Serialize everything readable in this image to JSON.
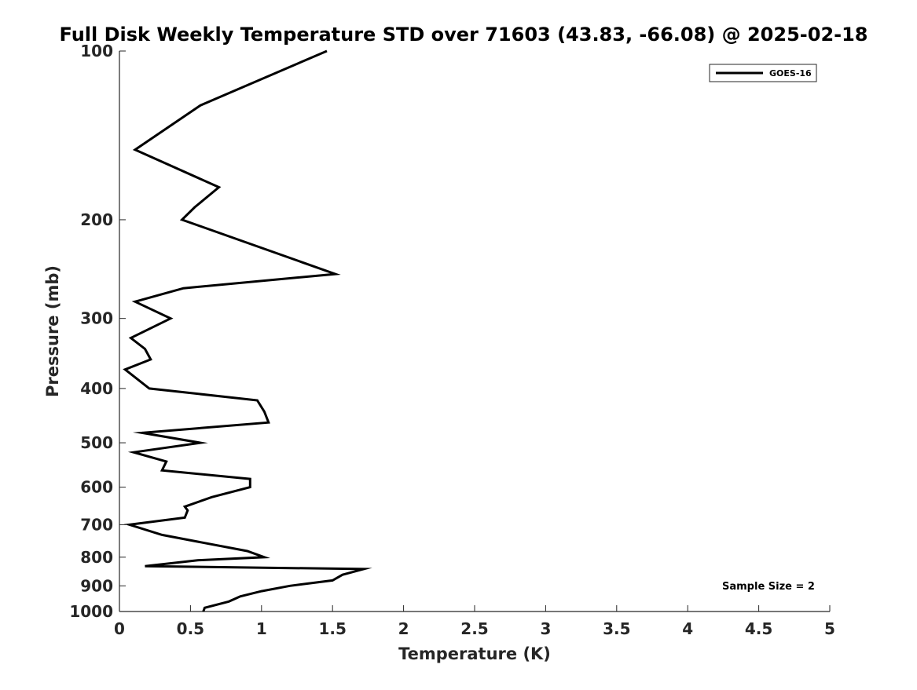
{
  "chart_data": {
    "type": "line",
    "title": "Full Disk Weekly Temperature STD over 71603 (43.83, -66.08) @ 2025-02-18",
    "xlabel": "Temperature (K)",
    "ylabel": "Pressure (mb)",
    "xlim": [
      0,
      5
    ],
    "ylim": [
      100,
      1000
    ],
    "y_scale": "log",
    "y_reversed": true,
    "grid": false,
    "legend_position": "top-right",
    "x_ticks": [
      {
        "value": 0,
        "label": "0"
      },
      {
        "value": 0.5,
        "label": "0.5"
      },
      {
        "value": 1,
        "label": "1"
      },
      {
        "value": 1.5,
        "label": "1.5"
      },
      {
        "value": 2,
        "label": "2"
      },
      {
        "value": 2.5,
        "label": "2.5"
      },
      {
        "value": 3,
        "label": "3"
      },
      {
        "value": 3.5,
        "label": "3.5"
      },
      {
        "value": 4,
        "label": "4"
      },
      {
        "value": 4.5,
        "label": "4.5"
      },
      {
        "value": 5,
        "label": "5"
      }
    ],
    "y_ticks": [
      {
        "value": 100,
        "label": "100"
      },
      {
        "value": 200,
        "label": "200"
      },
      {
        "value": 300,
        "label": "300"
      },
      {
        "value": 400,
        "label": "400"
      },
      {
        "value": 500,
        "label": "500"
      },
      {
        "value": 600,
        "label": "600"
      },
      {
        "value": 700,
        "label": "700"
      },
      {
        "value": 800,
        "label": "800"
      },
      {
        "value": 900,
        "label": "900"
      },
      {
        "value": 1000,
        "label": "1000"
      }
    ],
    "series": [
      {
        "name": "GOES-16",
        "color": "#000000",
        "points": [
          [
            1.46,
            100
          ],
          [
            0.57,
            125
          ],
          [
            0.11,
            150
          ],
          [
            0.7,
            175
          ],
          [
            0.53,
            190
          ],
          [
            0.44,
            200
          ],
          [
            1.52,
            250
          ],
          [
            0.45,
            265
          ],
          [
            0.11,
            280
          ],
          [
            0.36,
            300
          ],
          [
            0.08,
            325
          ],
          [
            0.18,
            340
          ],
          [
            0.22,
            355
          ],
          [
            0.04,
            370
          ],
          [
            0.21,
            400
          ],
          [
            0.97,
            420
          ],
          [
            1.02,
            440
          ],
          [
            1.05,
            460
          ],
          [
            0.16,
            480
          ],
          [
            0.57,
            500
          ],
          [
            0.1,
            520
          ],
          [
            0.33,
            540
          ],
          [
            0.3,
            560
          ],
          [
            0.92,
            580
          ],
          [
            0.92,
            600
          ],
          [
            0.65,
            625
          ],
          [
            0.46,
            650
          ],
          [
            0.48,
            660
          ],
          [
            0.46,
            680
          ],
          [
            0.07,
            700
          ],
          [
            0.3,
            730
          ],
          [
            0.9,
            780
          ],
          [
            1.02,
            800
          ],
          [
            0.55,
            810
          ],
          [
            0.18,
            830
          ],
          [
            1.72,
            840
          ],
          [
            1.57,
            860
          ],
          [
            1.5,
            880
          ],
          [
            1.2,
            900
          ],
          [
            1.0,
            920
          ],
          [
            0.85,
            940
          ],
          [
            0.77,
            960
          ],
          [
            0.6,
            985
          ],
          [
            0.59,
            1000
          ]
        ]
      }
    ],
    "annotation": "Sample Size = 2"
  }
}
